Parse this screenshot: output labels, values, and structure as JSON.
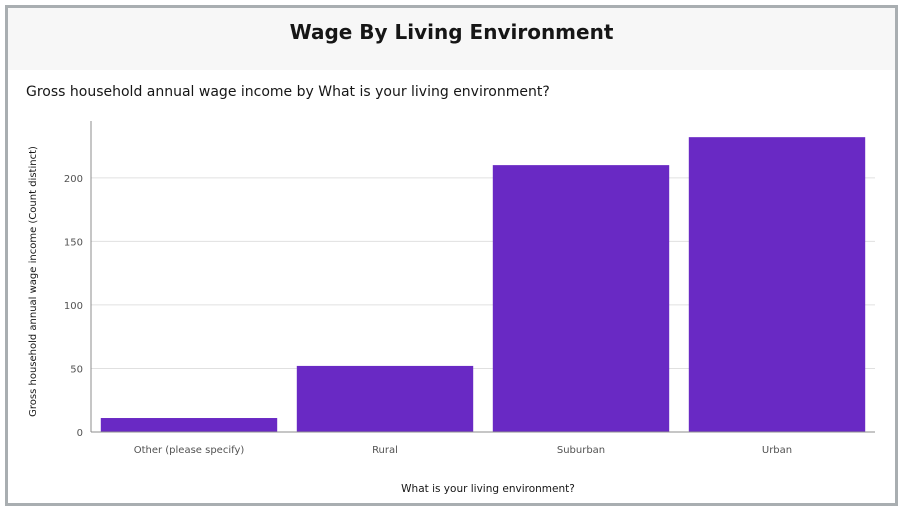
{
  "card": {
    "title": "Wage By Living Environment"
  },
  "chart_heading": "Gross household annual wage income by What is your living environment?",
  "colors": {
    "bar": "#6929c4",
    "grid": "#e0e0e0",
    "axis": "#8d8d8d",
    "frame": "#a9aeb1"
  },
  "chart_data": {
    "type": "bar",
    "title": "Gross household annual wage income by What is your living environment?",
    "xlabel": "What is your living environment?",
    "ylabel": "Gross household annual wage income (Count distinct)",
    "categories": [
      "Other (please specify)",
      "Rural",
      "Suburban",
      "Urban"
    ],
    "values": [
      11,
      52,
      210,
      232
    ],
    "ylim": [
      0,
      240
    ],
    "yticks": [
      0,
      50,
      100,
      150,
      200
    ],
    "grid": true,
    "legend": "none"
  }
}
